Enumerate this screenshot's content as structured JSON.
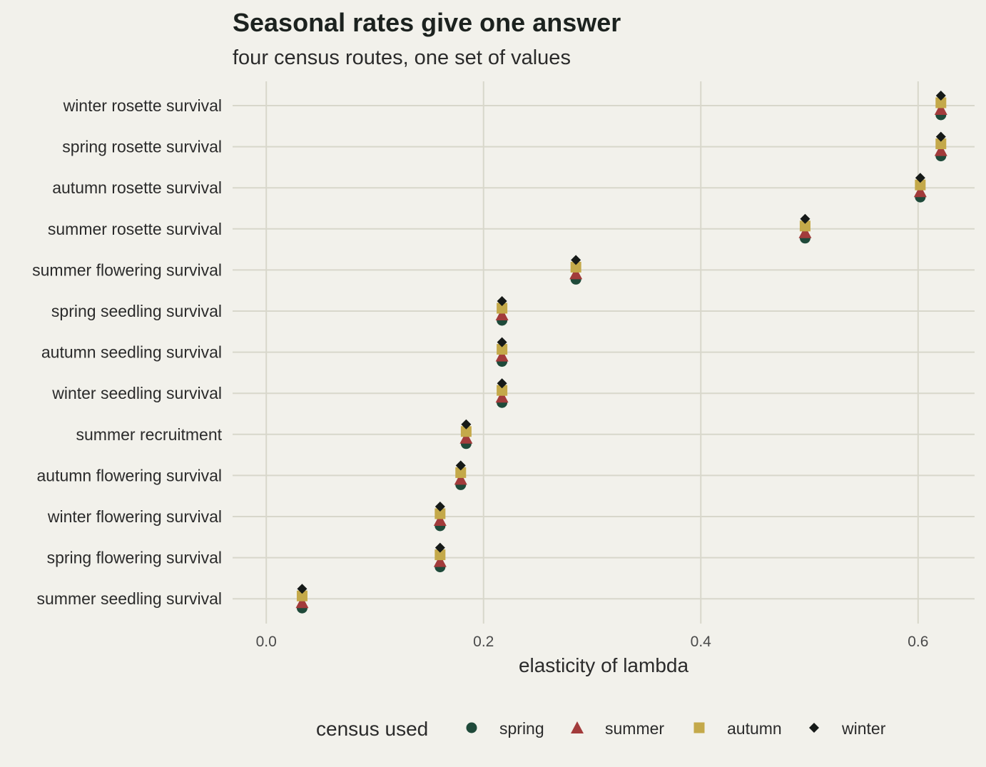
{
  "chart_data": {
    "type": "scatter",
    "title": "Seasonal rates give one answer",
    "subtitle": "four census routes, one set of values",
    "xlabel": "elasticity of lambda",
    "ylabel": "",
    "xlim": [
      -0.031,
      0.652
    ],
    "xticks": [
      "0.0",
      "0.2",
      "0.4",
      "0.6"
    ],
    "xtick_values": [
      0.0,
      0.2,
      0.4,
      0.6
    ],
    "grid": true,
    "legend_position": "bottom",
    "legend_title": "census used",
    "categories": [
      "winter rosette survival",
      "spring rosette survival",
      "autumn rosette survival",
      "summer rosette survival",
      "summer flowering survival",
      "spring seedling survival",
      "autumn seedling survival",
      "winter seedling survival",
      "summer recruitment",
      "autumn flowering survival",
      "winter flowering survival",
      "spring flowering survival",
      "summer seedling survival"
    ],
    "series": [
      {
        "name": "spring",
        "marker": "circle",
        "color": "#1f4a3a",
        "values": [
          0.621,
          0.621,
          0.602,
          0.496,
          0.285,
          0.217,
          0.217,
          0.217,
          0.184,
          0.179,
          0.16,
          0.16,
          0.033
        ]
      },
      {
        "name": "summer",
        "marker": "triangle",
        "color": "#a23b3b",
        "values": [
          0.621,
          0.621,
          0.602,
          0.496,
          0.285,
          0.217,
          0.217,
          0.217,
          0.184,
          0.179,
          0.16,
          0.16,
          0.033
        ]
      },
      {
        "name": "autumn",
        "marker": "square",
        "color": "#c4a94a",
        "values": [
          0.621,
          0.621,
          0.602,
          0.496,
          0.285,
          0.217,
          0.217,
          0.217,
          0.184,
          0.179,
          0.16,
          0.16,
          0.033
        ]
      },
      {
        "name": "winter",
        "marker": "diamond",
        "color": "#161a18",
        "values": [
          0.621,
          0.621,
          0.602,
          0.496,
          0.285,
          0.217,
          0.217,
          0.217,
          0.184,
          0.179,
          0.16,
          0.16,
          0.033
        ]
      }
    ]
  }
}
